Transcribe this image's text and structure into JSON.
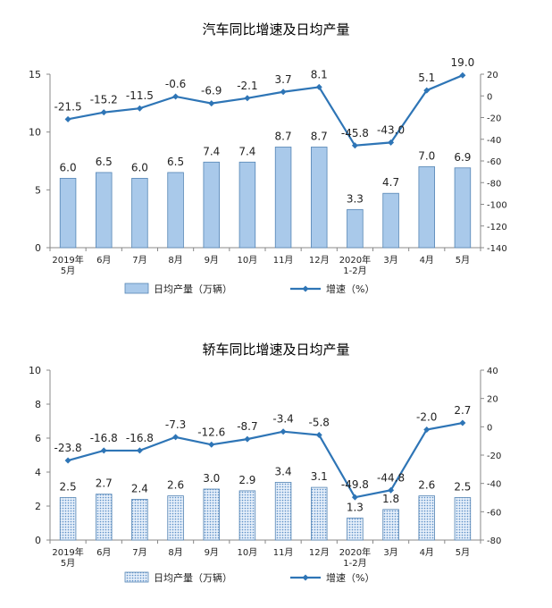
{
  "chart_data": [
    {
      "type": "bar",
      "title": "汽车同比增速及日均产量",
      "categories": [
        "2019年\n5月",
        "6月",
        "7月",
        "8月",
        "9月",
        "10月",
        "11月",
        "12月",
        "2020年\n1-2月",
        "3月",
        "4月",
        "5月"
      ],
      "series": [
        {
          "name": "日均产量（万辆）",
          "type": "bar",
          "axis": "left",
          "values": [
            6.0,
            6.5,
            6.0,
            6.5,
            7.4,
            7.4,
            8.7,
            8.7,
            3.3,
            4.7,
            7.0,
            6.9
          ],
          "labels": [
            "6.0",
            "6.5",
            "6.0",
            "6.5",
            "7.4",
            "7.4",
            "8.7",
            "8.7",
            "3.3",
            "4.7",
            "7.0",
            "6.9"
          ]
        },
        {
          "name": "增速（%）",
          "type": "line",
          "axis": "right",
          "values": [
            -21.5,
            -15.2,
            -11.5,
            -0.6,
            -6.9,
            -2.1,
            3.7,
            8.1,
            -45.8,
            -43.0,
            5.1,
            19.0
          ],
          "labels": [
            "-21.5",
            "-15.2",
            "-11.5",
            "-0.6",
            "-6.9",
            "-2.1",
            "3.7",
            "8.1",
            "-45.8",
            "-43.0",
            "5.1",
            "19.0"
          ]
        }
      ],
      "ylim_left": [
        0,
        15
      ],
      "yticks_left": [
        "0",
        "5",
        "10",
        "15"
      ],
      "ylim_right": [
        -140,
        20
      ],
      "yticks_right": [
        "-140",
        "-120",
        "-100",
        "-80",
        "-60",
        "-40",
        "-20",
        "0",
        "20"
      ],
      "grid": false,
      "legend_position": "bottom"
    },
    {
      "type": "bar",
      "title": "轿车同比增速及日均产量",
      "categories": [
        "2019年\n5月",
        "6月",
        "7月",
        "8月",
        "9月",
        "10月",
        "11月",
        "12月",
        "2020年\n1-2月",
        "3月",
        "4月",
        "5月"
      ],
      "series": [
        {
          "name": "日均产量（万辆）",
          "type": "bar",
          "axis": "left",
          "values": [
            2.5,
            2.7,
            2.4,
            2.6,
            3.0,
            2.9,
            3.4,
            3.1,
            1.3,
            1.8,
            2.6,
            2.5
          ],
          "labels": [
            "2.5",
            "2.7",
            "2.4",
            "2.6",
            "3.0",
            "2.9",
            "3.4",
            "3.1",
            "1.3",
            "1.8",
            "2.6",
            "2.5"
          ]
        },
        {
          "name": "增速（%）",
          "type": "line",
          "axis": "right",
          "values": [
            -23.8,
            -16.8,
            -16.8,
            -7.3,
            -12.6,
            -8.7,
            -3.4,
            -5.8,
            -49.8,
            -44.8,
            -2.0,
            2.7
          ],
          "labels": [
            "-23.8",
            "-16.8",
            "-16.8",
            "-7.3",
            "-12.6",
            "-8.7",
            "-3.4",
            "-5.8",
            "-49.8",
            "-44.8",
            "-2.0",
            "2.7"
          ]
        }
      ],
      "ylim_left": [
        0,
        10
      ],
      "yticks_left": [
        "0",
        "2",
        "4",
        "6",
        "8",
        "10"
      ],
      "ylim_right": [
        -80,
        40
      ],
      "yticks_right": [
        "-80",
        "-60",
        "-40",
        "-20",
        "0",
        "20",
        "40"
      ],
      "grid": false,
      "legend_position": "bottom",
      "style": {
        "bar_fill": "dotted"
      }
    }
  ],
  "colors": {
    "bar_fill_top": "#a9c9ea",
    "bar_fill_bottom_dots": "#5b8fc7",
    "bar_border": "#5585b5",
    "line_color": "#2e75b6"
  }
}
